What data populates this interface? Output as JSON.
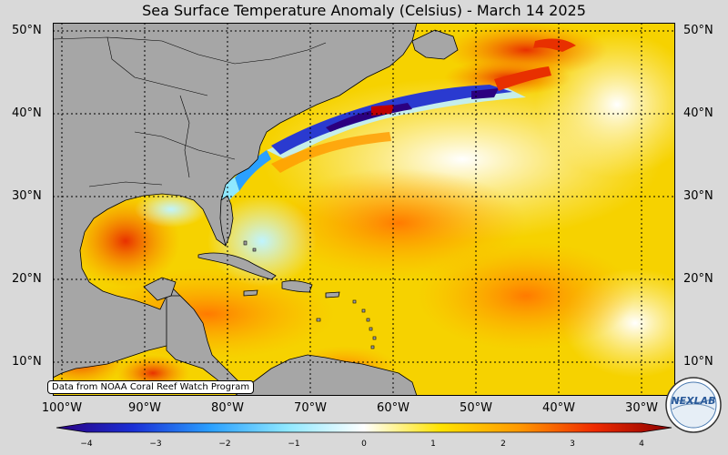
{
  "title": "Sea Surface Temperature Anomaly (Celsius) - March 14 2025",
  "credit": "Data from NOAA Coral Reef Watch Program",
  "latitude_labels": [
    "50°N",
    "40°N",
    "30°N",
    "20°N",
    "10°N"
  ],
  "longitude_labels": [
    "100°W",
    "90°W",
    "80°W",
    "70°W",
    "60°W",
    "50°W",
    "40°W",
    "30°W"
  ],
  "colorbar": {
    "min": -4,
    "max": 4,
    "ticks": [
      "−4",
      "−3",
      "−2",
      "−1",
      "0",
      "1",
      "2",
      "3",
      "4"
    ],
    "colors": [
      "#2b0080",
      "#1a2fd6",
      "#2aa0ff",
      "#8fe8ff",
      "#ffffff",
      "#ffe300",
      "#ff9a00",
      "#ef2a00",
      "#8a0000"
    ]
  },
  "logo": {
    "text": "NEXLAB",
    "icon": "nexlab-logo-icon"
  },
  "colors": {
    "land": "#a6a6a6",
    "ocean_warm": "#f4d000",
    "background": "#d9d9d9"
  }
}
